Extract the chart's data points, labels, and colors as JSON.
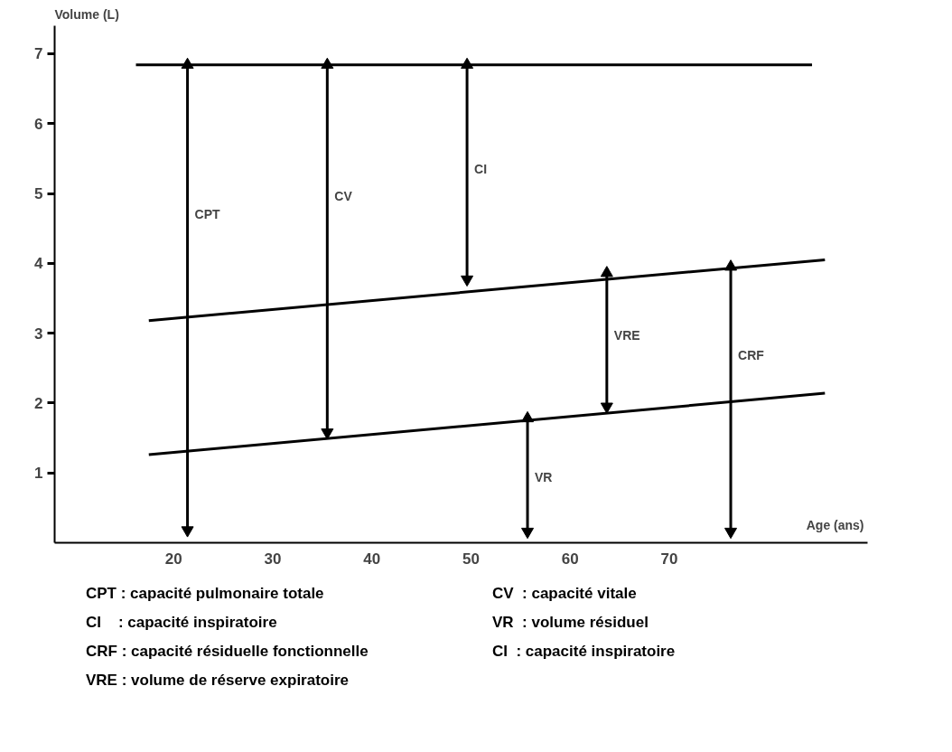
{
  "chart_data": {
    "type": "line",
    "xlabel": "Age (ans)",
    "ylabel": "Volume (L)",
    "xlim": [
      8,
      90
    ],
    "ylim": [
      0,
      7.4
    ],
    "xticks": [
      20,
      30,
      40,
      50,
      60,
      70
    ],
    "yticks": [
      1,
      2,
      3,
      4,
      5,
      6,
      7
    ],
    "grid": false,
    "series": [
      {
        "color": "#000000",
        "x": [
          16.2,
          84.4
        ],
        "values": [
          6.84,
          6.84
        ]
      },
      {
        "color": "#000000",
        "x": [
          17.5,
          85.7
        ],
        "values": [
          3.18,
          4.05
        ]
      },
      {
        "color": "#000000",
        "x": [
          17.5,
          85.7
        ],
        "values": [
          1.26,
          2.14
        ]
      },
      {
        "color": "#000000",
        "marker": "triangle",
        "x": [
          21.4,
          21.4
        ],
        "values": [
          0.18,
          6.84
        ]
      },
      {
        "color": "#000000",
        "marker": "triangle",
        "x": [
          35.5,
          35.5
        ],
        "values": [
          1.58,
          6.84
        ]
      },
      {
        "color": "#000000",
        "marker": "triangle",
        "x": [
          49.6,
          49.6
        ],
        "values": [
          3.77,
          6.84
        ]
      },
      {
        "color": "#000000",
        "marker": "triangle",
        "x": [
          55.7,
          55.7
        ],
        "values": [
          0.16,
          1.78
        ]
      },
      {
        "color": "#000000",
        "marker": "triangle",
        "x": [
          63.7,
          63.7
        ],
        "values": [
          1.95,
          3.86
        ]
      },
      {
        "color": "#000000",
        "marker": "triangle",
        "x": [
          76.2,
          76.2
        ],
        "values": [
          0.16,
          3.95
        ]
      }
    ],
    "annotations": [
      {
        "text": "CPT",
        "x": 21.4,
        "y": 4.7
      },
      {
        "text": "CV",
        "x": 35.5,
        "y": 4.96
      },
      {
        "text": "CI",
        "x": 49.6,
        "y": 5.35
      },
      {
        "text": "VR",
        "x": 55.7,
        "y": 0.94
      },
      {
        "text": "VRE",
        "x": 63.7,
        "y": 2.97
      },
      {
        "text": "CRF",
        "x": 76.2,
        "y": 2.69
      },
      "CPT : capacité pulmonaire totale",
      "CV  : capacité vitale",
      "CI    : capacité inspiratoire",
      "VR  : volume résiduel",
      "CRF : capacité résiduelle fonctionnelle",
      "CI  : capacité inspiratoire",
      "VRE : volume de réserve expiratoire"
    ]
  }
}
